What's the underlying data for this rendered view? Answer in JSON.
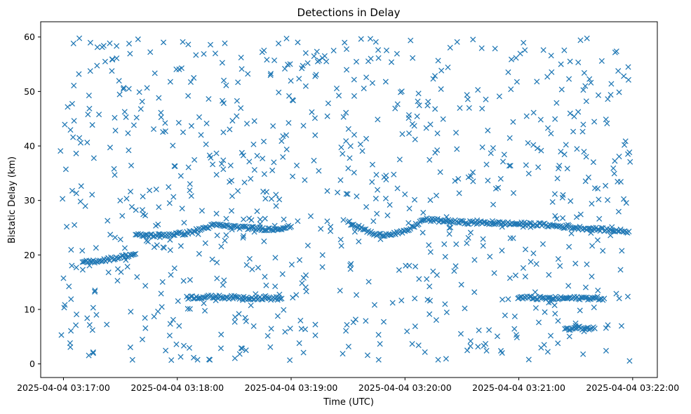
{
  "chart_data": {
    "type": "scatter",
    "title": "Detections in Delay",
    "xlabel": "Time (UTC)",
    "ylabel": "Bistatic Delay (km)",
    "x_ticks": [
      "2025-04-04 03:17:00",
      "2025-04-04 03:18:00",
      "2025-04-04 03:19:00",
      "2025-04-04 03:20:00",
      "2025-04-04 03:21:00",
      "2025-04-04 03:22:00"
    ],
    "y_ticks": [
      "0",
      "10",
      "20",
      "30",
      "40",
      "50",
      "60"
    ],
    "xlim": [
      "2025-04-04 03:16:48",
      "2025-04-04 03:22:13"
    ],
    "ylim": [
      -2.5,
      62.8
    ],
    "grid": false,
    "marker": "x",
    "color": "#1f77b4",
    "series": [
      {
        "points_note": "Dense clutter detections spread uniformly between ~0 and ~60 km over 03:16:58–03:21:59; coherent tracks listed below.",
        "clutter_time_range": [
          "2025-04-04 03:16:58",
          "2025-04-04 03:21:59"
        ],
        "clutter_delay_range": [
          0.5,
          59.8
        ],
        "tracks": [
          {
            "times": [
              "2025-04-04 03:17:10",
              "2025-04-04 03:17:20",
              "2025-04-04 03:17:30",
              "2025-04-04 03:17:38"
            ],
            "delays": [
              18.6,
              19.0,
              19.6,
              20.2
            ]
          },
          {
            "times": [
              "2025-04-04 03:17:38",
              "2025-04-04 03:17:50",
              "2025-04-04 03:18:05",
              "2025-04-04 03:18:20",
              "2025-04-04 03:18:35",
              "2025-04-04 03:18:50",
              "2025-04-04 03:19:00"
            ],
            "delays": [
              23.6,
              23.6,
              24.0,
              25.5,
              25.0,
              24.7,
              25.2
            ]
          },
          {
            "times": [
              "2025-04-04 03:19:30",
              "2025-04-04 03:19:45",
              "2025-04-04 03:20:00",
              "2025-04-04 03:20:10",
              "2025-04-04 03:20:30",
              "2025-04-04 03:20:50",
              "2025-04-04 03:21:10",
              "2025-04-04 03:21:30",
              "2025-04-04 03:21:50",
              "2025-04-04 03:21:58"
            ],
            "delays": [
              26.0,
              23.6,
              24.2,
              26.5,
              26.0,
              25.8,
              25.6,
              25.0,
              24.5,
              24.3
            ]
          },
          {
            "times": [
              "2025-04-04 03:18:05",
              "2025-04-04 03:18:20",
              "2025-04-04 03:18:40",
              "2025-04-04 03:18:55"
            ],
            "delays": [
              12.2,
              12.3,
              12.1,
              12.0
            ]
          },
          {
            "times": [
              "2025-04-04 03:21:00",
              "2025-04-04 03:21:15",
              "2025-04-04 03:21:35",
              "2025-04-04 03:21:45"
            ],
            "delays": [
              12.2,
              12.0,
              12.1,
              12.0
            ]
          },
          {
            "times": [
              "2025-04-04 03:21:25",
              "2025-04-04 03:21:32",
              "2025-04-04 03:21:40"
            ],
            "delays": [
              6.3,
              6.6,
              6.5
            ]
          }
        ]
      }
    ]
  }
}
